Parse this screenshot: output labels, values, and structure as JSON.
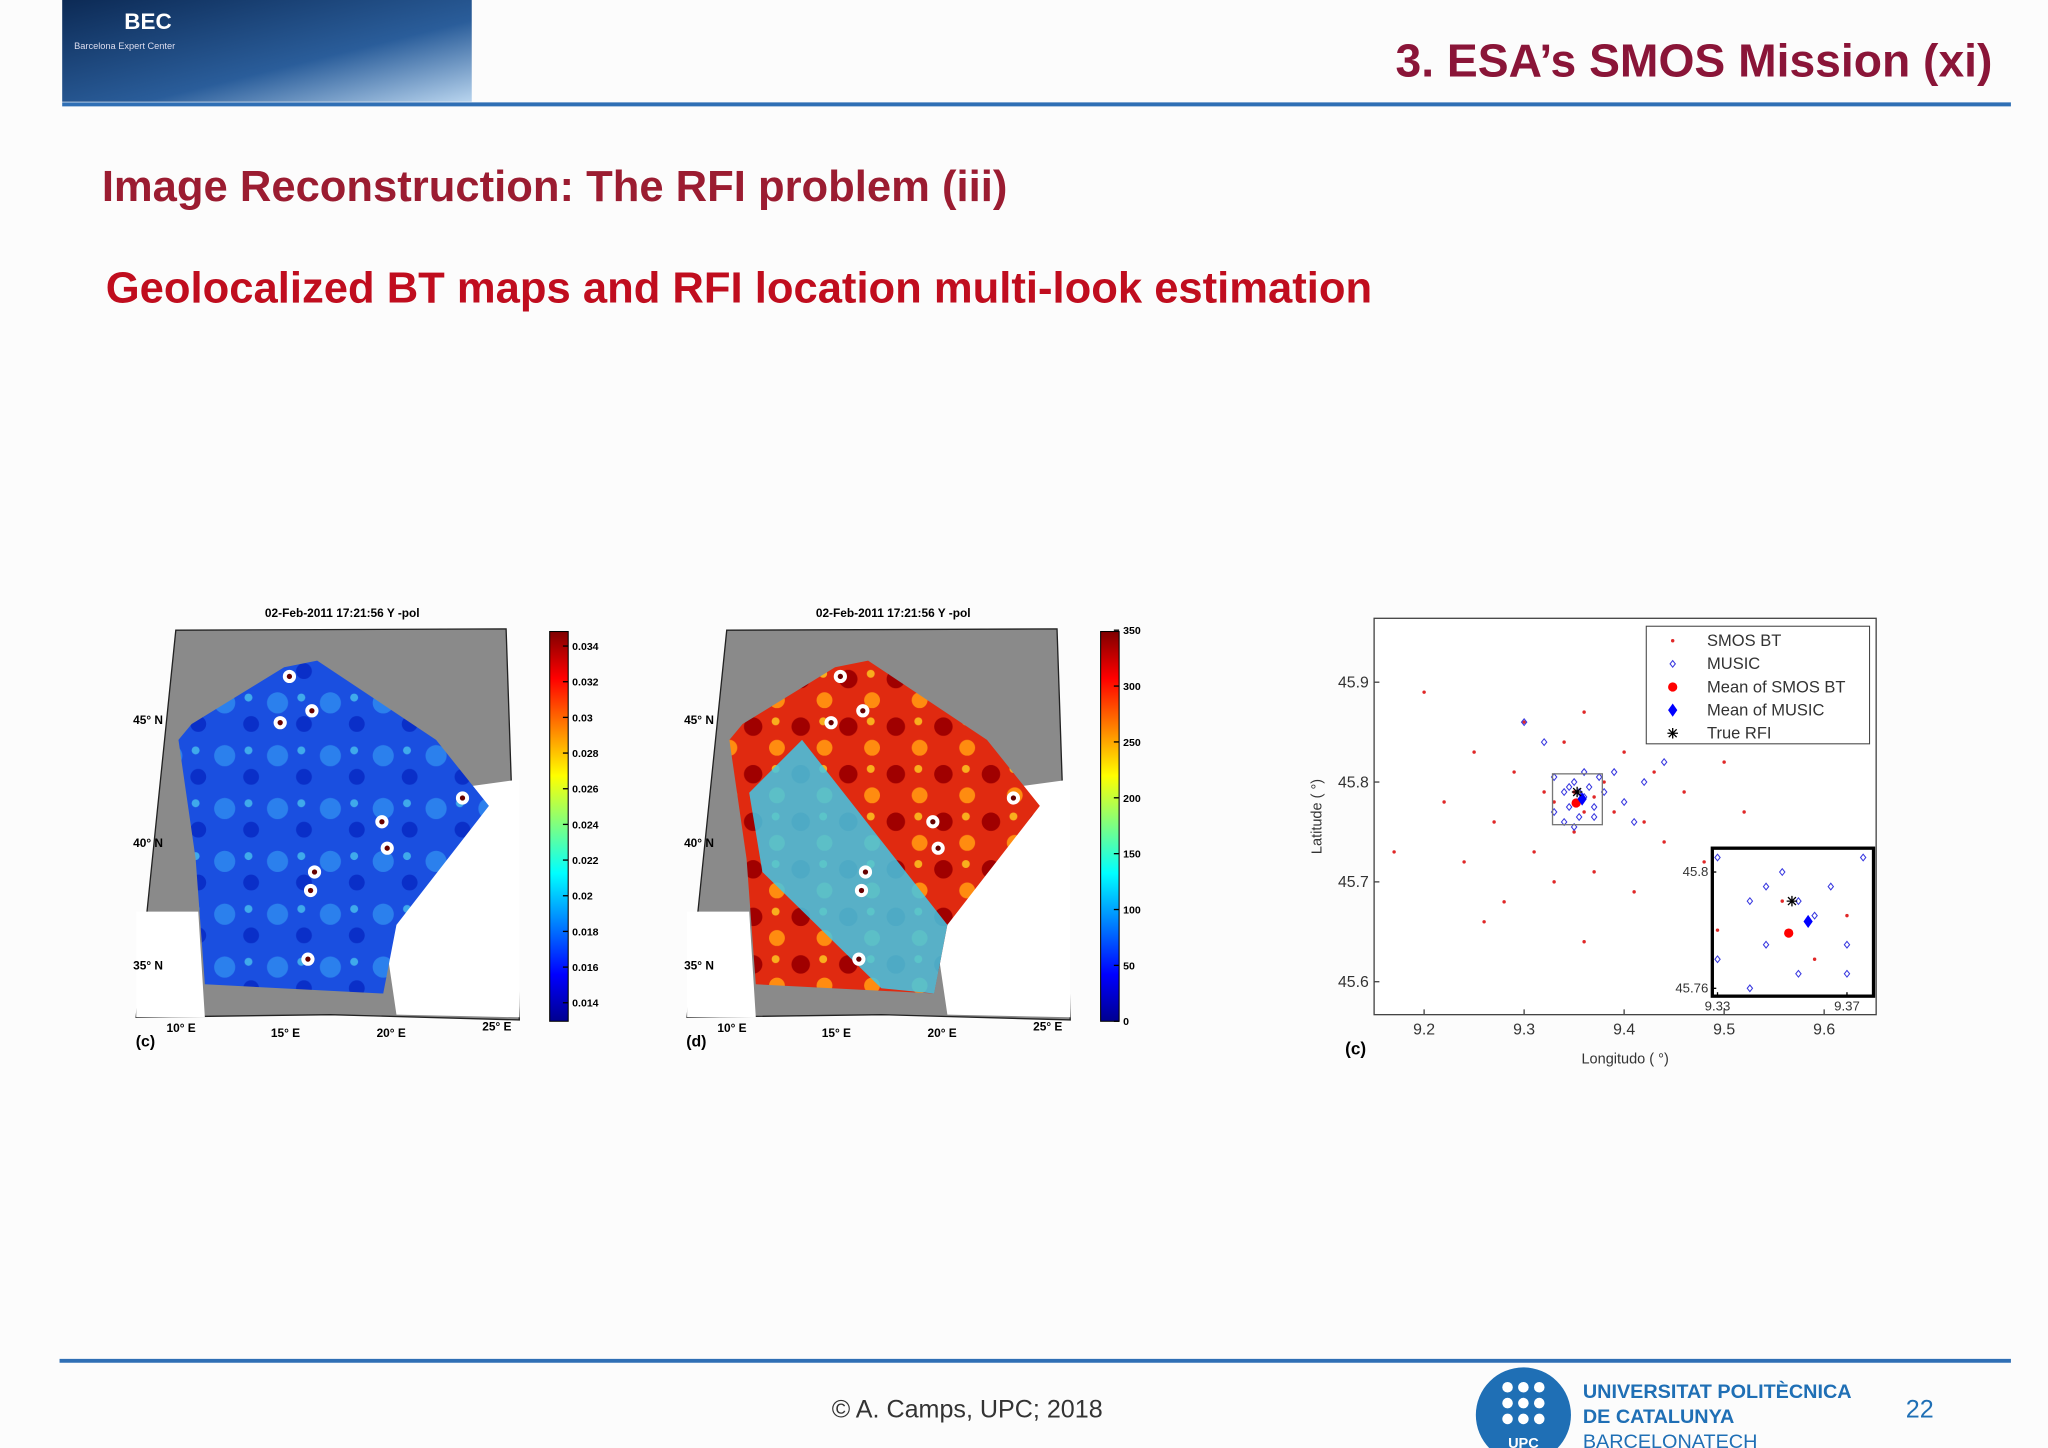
{
  "header": {
    "logo_text": "BEC",
    "logo_sub": "Barcelona Expert Center",
    "title": "3. ESA’s SMOS Mission (xi)"
  },
  "section_title": "Image Reconstruction: The RFI problem (iii)",
  "subtitle": "Geolocalized BT maps and RFI location multi-look estimation",
  "maps": [
    {
      "title": "02-Feb-2011 17:21:56   Y -pol",
      "panel": "(c)",
      "colorbar": [
        "0.034",
        "0.032",
        "0.03",
        "0.028",
        "0.026",
        "0.024",
        "0.022",
        "0.02",
        "0.018",
        "0.016",
        "0.014"
      ],
      "lat": [
        "45° N",
        "40° N",
        "35° N"
      ],
      "lon": [
        "10° E",
        "15° E",
        "20° E",
        "25° E"
      ]
    },
    {
      "title": "02-Feb-2011 17:21:56   Y -pol",
      "panel": "(d)",
      "colorbar": [
        "350",
        "300",
        "250",
        "200",
        "150",
        "100",
        "50",
        "0"
      ],
      "lat": [
        "45° N",
        "40° N",
        "35° N"
      ],
      "lon": [
        "10° E",
        "15° E",
        "20° E",
        "25° E"
      ]
    }
  ],
  "chart_data": {
    "type": "scatter",
    "panel": "(c)",
    "xlabel": "Longitudo ( °)",
    "ylabel": "Latitude ( °)",
    "xlim": [
      9.15,
      9.652
    ],
    "ylim": [
      45.567,
      45.964
    ],
    "xticks": [
      9.2,
      9.3,
      9.4,
      9.5,
      9.6
    ],
    "yticks": [
      45.6,
      45.7,
      45.8,
      45.9
    ],
    "legend": "upper right",
    "series": [
      {
        "name": "SMOS BT",
        "color": "#e02828",
        "marker": "dot",
        "x": [
          9.2,
          9.22,
          9.24,
          9.25,
          9.27,
          9.28,
          9.29,
          9.3,
          9.31,
          9.32,
          9.33,
          9.34,
          9.35,
          9.36,
          9.37,
          9.38,
          9.39,
          9.4,
          9.41,
          9.42,
          9.43,
          9.44,
          9.45,
          9.46,
          9.48,
          9.5,
          9.52,
          9.17,
          9.26,
          9.36,
          9.33,
          9.36,
          9.35,
          9.37
        ],
        "values": [
          45.89,
          45.78,
          45.72,
          45.83,
          45.76,
          45.68,
          45.81,
          45.86,
          45.73,
          45.79,
          45.7,
          45.84,
          45.75,
          45.87,
          45.71,
          45.8,
          45.77,
          45.83,
          45.69,
          45.76,
          45.81,
          45.74,
          45.85,
          45.79,
          45.72,
          45.82,
          45.77,
          45.73,
          45.66,
          45.64,
          45.78,
          45.77,
          45.79,
          45.785
        ]
      },
      {
        "name": "MUSIC",
        "color": "#3a3ae0",
        "marker": "diamond-open",
        "x": [
          9.33,
          9.34,
          9.345,
          9.35,
          9.355,
          9.36,
          9.365,
          9.37,
          9.375,
          9.34,
          9.38,
          9.39,
          9.4,
          9.42,
          9.44,
          9.32,
          9.3,
          9.36,
          9.35,
          9.37,
          9.345,
          9.33,
          9.41,
          9.355
        ],
        "values": [
          45.77,
          45.79,
          45.775,
          45.8,
          45.765,
          45.785,
          45.795,
          45.775,
          45.805,
          45.76,
          45.79,
          45.81,
          45.78,
          45.8,
          45.82,
          45.84,
          45.86,
          45.81,
          45.755,
          45.765,
          45.795,
          45.805,
          45.76,
          45.79
        ]
      },
      {
        "name": "Mean of SMOS BT",
        "color": "#ff0000",
        "marker": "big-dot",
        "x": [
          9.352
        ],
        "values": [
          45.779
        ]
      },
      {
        "name": "Mean of MUSIC",
        "color": "#0000ff",
        "marker": "big-diamond",
        "x": [
          9.358
        ],
        "values": [
          45.783
        ]
      },
      {
        "name": "True RFI",
        "color": "#000000",
        "marker": "star",
        "x": [
          9.353
        ],
        "values": [
          45.79
        ]
      }
    ],
    "inset": {
      "xlim": [
        9.3284,
        9.3782
      ],
      "ylim": [
        45.7573,
        45.8082
      ],
      "xticks": [
        9.33,
        9.37
      ],
      "yticks": [
        45.76,
        45.8
      ]
    }
  },
  "footer": {
    "credit": "© A. Camps, UPC; 2018",
    "university": [
      "UNIVERSITAT POLITÈCNICA",
      "DE CATALUNYA",
      "BARCELONATECH"
    ],
    "logo_text": "UPC",
    "page": "22"
  }
}
